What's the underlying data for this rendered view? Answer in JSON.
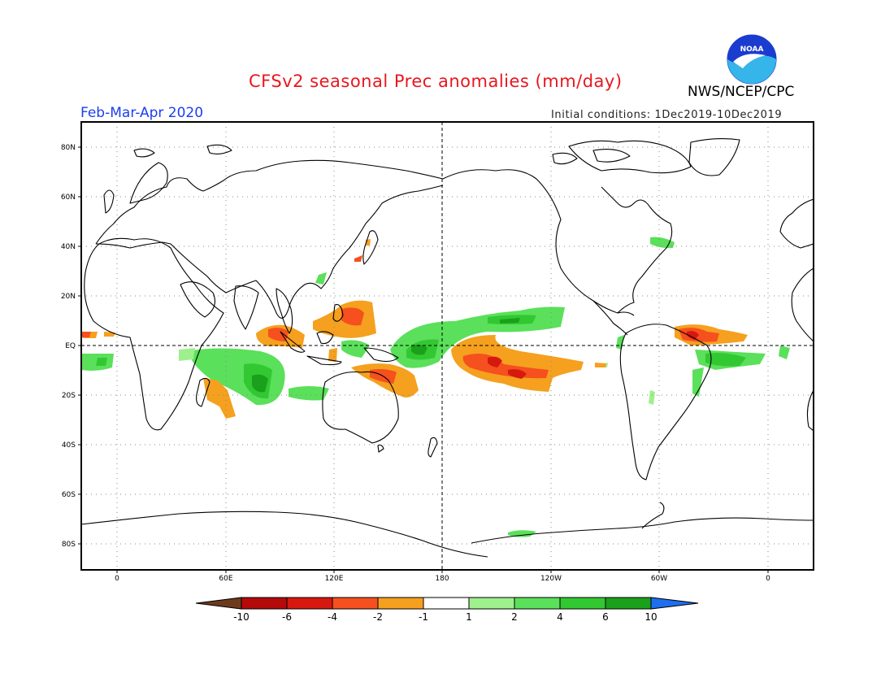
{
  "title": "CFSv2 seasonal Prec anomalies (mm/day)",
  "agency": "NWS/NCEP/CPC",
  "logo_text": "NOAA",
  "season": "Feb-Mar-Apr 2020",
  "initial_conditions": "Initial conditions: 1Dec2019-10Dec2019",
  "lat_labels": [
    "80N",
    "60N",
    "40N",
    "20N",
    "EQ",
    "20S",
    "40S",
    "60S",
    "80S"
  ],
  "lon_labels": [
    "0",
    "60E",
    "120E",
    "180",
    "120W",
    "60W",
    "0"
  ],
  "colorbar": {
    "colors": [
      "#6e3a1e",
      "#b40a0a",
      "#d6180f",
      "#f5501e",
      "#f5a01e",
      "#ffffff",
      "#9ef08c",
      "#5ae05a",
      "#32c832",
      "#1aa01a",
      "#1e6ef0"
    ],
    "labels": [
      "-10",
      "-6",
      "-4",
      "-2",
      "-1",
      "1",
      "2",
      "4",
      "6",
      "10"
    ]
  }
}
